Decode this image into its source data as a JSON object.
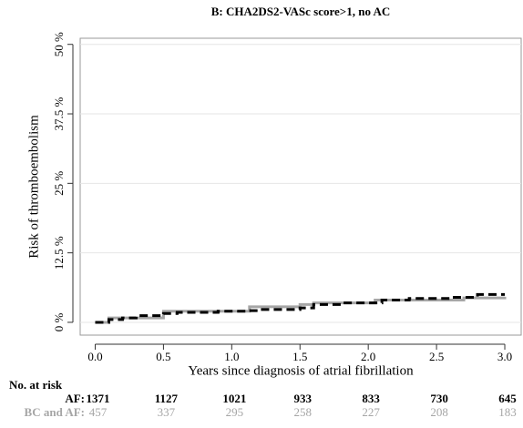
{
  "chart_data": {
    "type": "step",
    "title": "B: CHA2DS2-VASc score>1, no AC",
    "x_label": "Years since diagnosis of atrial fibrillation",
    "y_label": "Risk of thromboembolism",
    "xlim": [
      -0.11,
      3.12
    ],
    "ylim": [
      -2.3,
      51.1
    ],
    "xticks": [
      {
        "value": 0,
        "label": "0.0"
      },
      0.5,
      {
        "value": 1,
        "label": "1.0"
      },
      1.5,
      {
        "value": 2,
        "label": "2.0"
      },
      2.5,
      {
        "value": 3,
        "label": "3.0"
      }
    ],
    "yticks": [
      {
        "value": 0,
        "label": "0 %"
      },
      {
        "value": 12.5,
        "label": "12.5 %"
      },
      {
        "value": 25,
        "label": "25 %"
      },
      {
        "value": 37.5,
        "label": "37.5 %"
      },
      {
        "value": 50,
        "label": "50 %"
      }
    ],
    "grid": true,
    "series": [
      {
        "name": "AF",
        "color": "#000000",
        "dash": true,
        "x": [
          0,
          0.1,
          0.2,
          0.3,
          0.5,
          0.6,
          0.9,
          1.1,
          1.2,
          1.5,
          1.6,
          1.8,
          2.1,
          2.3,
          2.6,
          2.8,
          3.0
        ],
        "values": [
          0,
          0.5,
          0.8,
          1.2,
          1.6,
          1.8,
          2.0,
          2.1,
          2.3,
          2.6,
          3.2,
          3.5,
          4.0,
          4.3,
          4.5,
          5.0,
          5.0
        ]
      },
      {
        "name": "BC and AF",
        "color": "#a6a6a6",
        "dash": false,
        "x": [
          0,
          0.1,
          0.5,
          1.13,
          1.5,
          1.6,
          2.05,
          2.7,
          3.0
        ],
        "values": [
          0,
          0.8,
          2.0,
          2.8,
          3.2,
          3.5,
          4.0,
          4.4,
          4.6
        ]
      }
    ],
    "risk_table": {
      "title": "No. at risk",
      "rows": [
        {
          "label": "AF:",
          "color": "#000000",
          "values": [
            1371,
            1127,
            1021,
            933,
            833,
            730,
            645
          ]
        },
        {
          "label": "BC and AF:",
          "color": "#a6a6a6",
          "values": [
            457,
            337,
            295,
            258,
            227,
            208,
            183
          ]
        }
      ]
    }
  }
}
